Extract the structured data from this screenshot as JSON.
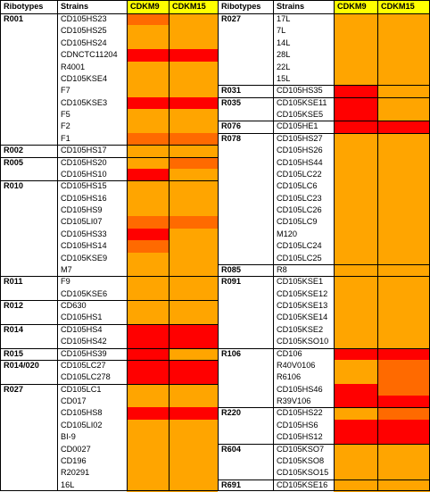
{
  "headers": {
    "ribotypes": "Ribotypes",
    "strains": "Strains",
    "cdkm9": "CDKM9",
    "cdkm15": "CDKM15"
  },
  "colors": {
    "header_yellow": "#FFFF00",
    "light_orange": "#FFA500",
    "orange": "#FF6A00",
    "red": "#FF0000"
  },
  "left": {
    "rows": [
      {
        "strain": "CD105HS23",
        "cdkm9": "orange",
        "cdkm15": "light_orange"
      },
      {
        "strain": "CD105HS25",
        "cdkm9": "light_orange",
        "cdkm15": "light_orange"
      },
      {
        "strain": "CD105HS24",
        "cdkm9": "light_orange",
        "cdkm15": "light_orange"
      },
      {
        "strain": "CDNCTC11204",
        "cdkm9": "red",
        "cdkm15": "red"
      },
      {
        "strain": "R4001",
        "cdkm9": "light_orange",
        "cdkm15": "light_orange"
      },
      {
        "strain": "CD105KSE4",
        "cdkm9": "light_orange",
        "cdkm15": "light_orange"
      },
      {
        "strain": "F7",
        "cdkm9": "light_orange",
        "cdkm15": "light_orange"
      },
      {
        "strain": "CD105KSE3",
        "cdkm9": "red",
        "cdkm15": "red"
      },
      {
        "strain": "F5",
        "cdkm9": "light_orange",
        "cdkm15": "light_orange"
      },
      {
        "strain": "F2",
        "cdkm9": "light_orange",
        "cdkm15": "light_orange"
      },
      {
        "strain": "F1",
        "cdkm9": "orange",
        "cdkm15": "orange"
      },
      {
        "strain": "CD105HS17",
        "cdkm9": "light_orange",
        "cdkm15": "light_orange"
      },
      {
        "strain": "CD105HS20",
        "cdkm9": "light_orange",
        "cdkm15": "orange"
      },
      {
        "strain": "CD105HS10",
        "cdkm9": "red",
        "cdkm15": "light_orange"
      },
      {
        "strain": "CD105HS15",
        "cdkm9": "light_orange",
        "cdkm15": "light_orange"
      },
      {
        "strain": "CD105HS16",
        "cdkm9": "light_orange",
        "cdkm15": "light_orange"
      },
      {
        "strain": "CD105HS9",
        "cdkm9": "light_orange",
        "cdkm15": "light_orange"
      },
      {
        "strain": "CD105LI07",
        "cdkm9": "orange",
        "cdkm15": "orange"
      },
      {
        "strain": "CD105HS33",
        "cdkm9": "red",
        "cdkm15": "light_orange"
      },
      {
        "strain": "CD105HS14",
        "cdkm9": "orange",
        "cdkm15": "light_orange"
      },
      {
        "strain": "CD105KSE9",
        "cdkm9": "light_orange",
        "cdkm15": "light_orange"
      },
      {
        "strain": "M7",
        "cdkm9": "light_orange",
        "cdkm15": "light_orange"
      },
      {
        "strain": "F9",
        "cdkm9": "light_orange",
        "cdkm15": "light_orange"
      },
      {
        "strain": "CD105KSE6",
        "cdkm9": "light_orange",
        "cdkm15": "light_orange"
      },
      {
        "strain": "CD630",
        "cdkm9": "light_orange",
        "cdkm15": "light_orange"
      },
      {
        "strain": "CD105HS1",
        "cdkm9": "light_orange",
        "cdkm15": "light_orange"
      },
      {
        "strain": "CD105HS4",
        "cdkm9": "red",
        "cdkm15": "red"
      },
      {
        "strain": "CD105HS42",
        "cdkm9": "red",
        "cdkm15": "red"
      },
      {
        "strain": "CD105HS39",
        "cdkm9": "red",
        "cdkm15": "light_orange"
      },
      {
        "strain": "CD105LC27",
        "cdkm9": "red",
        "cdkm15": "red"
      },
      {
        "strain": "CD105LC278",
        "cdkm9": "red",
        "cdkm15": "red"
      },
      {
        "strain": "CD105LC1",
        "cdkm9": "light_orange",
        "cdkm15": "light_orange"
      },
      {
        "strain": "CD017",
        "cdkm9": "light_orange",
        "cdkm15": "light_orange"
      },
      {
        "strain": "CD105HS8",
        "cdkm9": "red",
        "cdkm15": "red"
      },
      {
        "strain": "CD105LI02",
        "cdkm9": "light_orange",
        "cdkm15": "light_orange"
      },
      {
        "strain": "BI-9",
        "cdkm9": "light_orange",
        "cdkm15": "light_orange"
      },
      {
        "strain": "CD0027",
        "cdkm9": "light_orange",
        "cdkm15": "light_orange"
      },
      {
        "strain": "CD196",
        "cdkm9": "light_orange",
        "cdkm15": "light_orange"
      },
      {
        "strain": "R20291",
        "cdkm9": "light_orange",
        "cdkm15": "light_orange"
      },
      {
        "strain": "16L",
        "cdkm9": "light_orange",
        "cdkm15": "light_orange"
      }
    ],
    "groups": [
      {
        "label": "R001",
        "start": 0,
        "count": 11
      },
      {
        "label": "R002",
        "start": 11,
        "count": 1
      },
      {
        "label": "R005",
        "start": 12,
        "count": 2
      },
      {
        "label": "R010",
        "start": 14,
        "count": 8
      },
      {
        "label": "R011",
        "start": 22,
        "count": 2
      },
      {
        "label": "R012",
        "start": 24,
        "count": 2
      },
      {
        "label": "R014",
        "start": 26,
        "count": 2
      },
      {
        "label": "R015",
        "start": 28,
        "count": 1
      },
      {
        "label": "R014/020",
        "start": 29,
        "count": 2
      },
      {
        "label": "R027",
        "start": 31,
        "count": 9
      }
    ]
  },
  "right": {
    "rows": [
      {
        "strain": "17L",
        "cdkm9": "light_orange",
        "cdkm15": "light_orange"
      },
      {
        "strain": "7L",
        "cdkm9": "light_orange",
        "cdkm15": "light_orange"
      },
      {
        "strain": "14L",
        "cdkm9": "light_orange",
        "cdkm15": "light_orange"
      },
      {
        "strain": "28L",
        "cdkm9": "light_orange",
        "cdkm15": "light_orange"
      },
      {
        "strain": "22L",
        "cdkm9": "light_orange",
        "cdkm15": "light_orange"
      },
      {
        "strain": "15L",
        "cdkm9": "light_orange",
        "cdkm15": "light_orange"
      },
      {
        "strain": "CD105HS35",
        "cdkm9": "red",
        "cdkm15": "light_orange"
      },
      {
        "strain": "CD105KSE11",
        "cdkm9": "red",
        "cdkm15": "light_orange"
      },
      {
        "strain": "CD105KSE5",
        "cdkm9": "red",
        "cdkm15": "light_orange"
      },
      {
        "strain": "CD105HE1",
        "cdkm9": "red",
        "cdkm15": "red"
      },
      {
        "strain": "CD105HS27",
        "cdkm9": "light_orange",
        "cdkm15": "light_orange"
      },
      {
        "strain": "CD105HS26",
        "cdkm9": "light_orange",
        "cdkm15": "light_orange"
      },
      {
        "strain": "CD105HS44",
        "cdkm9": "light_orange",
        "cdkm15": "light_orange"
      },
      {
        "strain": "CD105LC22",
        "cdkm9": "light_orange",
        "cdkm15": "light_orange"
      },
      {
        "strain": "CD105LC6",
        "cdkm9": "light_orange",
        "cdkm15": "light_orange"
      },
      {
        "strain": "CD105LC23",
        "cdkm9": "light_orange",
        "cdkm15": "light_orange"
      },
      {
        "strain": "CD105LC26",
        "cdkm9": "light_orange",
        "cdkm15": "light_orange"
      },
      {
        "strain": "CD105LC9",
        "cdkm9": "light_orange",
        "cdkm15": "light_orange"
      },
      {
        "strain": "M120",
        "cdkm9": "light_orange",
        "cdkm15": "light_orange"
      },
      {
        "strain": "CD105LC24",
        "cdkm9": "light_orange",
        "cdkm15": "light_orange"
      },
      {
        "strain": "CD105LC25",
        "cdkm9": "light_orange",
        "cdkm15": "light_orange"
      },
      {
        "strain": "R8",
        "cdkm9": "light_orange",
        "cdkm15": "light_orange"
      },
      {
        "strain": "CD105KSE1",
        "cdkm9": "light_orange",
        "cdkm15": "light_orange"
      },
      {
        "strain": "CD105KSE12",
        "cdkm9": "light_orange",
        "cdkm15": "light_orange"
      },
      {
        "strain": "CD105KSE13",
        "cdkm9": "light_orange",
        "cdkm15": "light_orange"
      },
      {
        "strain": "CD105KSE14",
        "cdkm9": "light_orange",
        "cdkm15": "light_orange"
      },
      {
        "strain": "CD105KSE2",
        "cdkm9": "light_orange",
        "cdkm15": "light_orange"
      },
      {
        "strain": "CD105KSO10",
        "cdkm9": "light_orange",
        "cdkm15": "light_orange"
      },
      {
        "strain": "CD106",
        "cdkm9": "red",
        "cdkm15": "red"
      },
      {
        "strain": "R40V0106",
        "cdkm9": "light_orange",
        "cdkm15": "orange"
      },
      {
        "strain": "R6106",
        "cdkm9": "light_orange",
        "cdkm15": "orange"
      },
      {
        "strain": "CD105HS46",
        "cdkm9": "red",
        "cdkm15": "orange"
      },
      {
        "strain": "R39V106",
        "cdkm9": "red",
        "cdkm15": "red"
      },
      {
        "strain": "CD105HS22",
        "cdkm9": "light_orange",
        "cdkm15": "orange"
      },
      {
        "strain": "CD105HS6",
        "cdkm9": "red",
        "cdkm15": "red"
      },
      {
        "strain": "CD105HS12",
        "cdkm9": "red",
        "cdkm15": "red"
      },
      {
        "strain": "CD105KSO7",
        "cdkm9": "light_orange",
        "cdkm15": "light_orange"
      },
      {
        "strain": "CD105KSO8",
        "cdkm9": "light_orange",
        "cdkm15": "light_orange"
      },
      {
        "strain": "CD105KSO15",
        "cdkm9": "light_orange",
        "cdkm15": "light_orange"
      },
      {
        "strain": "CD105KSE16",
        "cdkm9": "light_orange",
        "cdkm15": "light_orange"
      }
    ],
    "groups": [
      {
        "label": "R027",
        "start": 0,
        "count": 6
      },
      {
        "label": "R031",
        "start": 6,
        "count": 1
      },
      {
        "label": "R035",
        "start": 7,
        "count": 2
      },
      {
        "label": "R076",
        "start": 9,
        "count": 1
      },
      {
        "label": "R078",
        "start": 10,
        "count": 11
      },
      {
        "label": "R085",
        "start": 21,
        "count": 1
      },
      {
        "label": "R091",
        "start": 22,
        "count": 6
      },
      {
        "label": "R106",
        "start": 28,
        "count": 5
      },
      {
        "label": "R220",
        "start": 33,
        "count": 3
      },
      {
        "label": "R604",
        "start": 36,
        "count": 3
      },
      {
        "label": "R691",
        "start": 39,
        "count": 1
      }
    ]
  }
}
